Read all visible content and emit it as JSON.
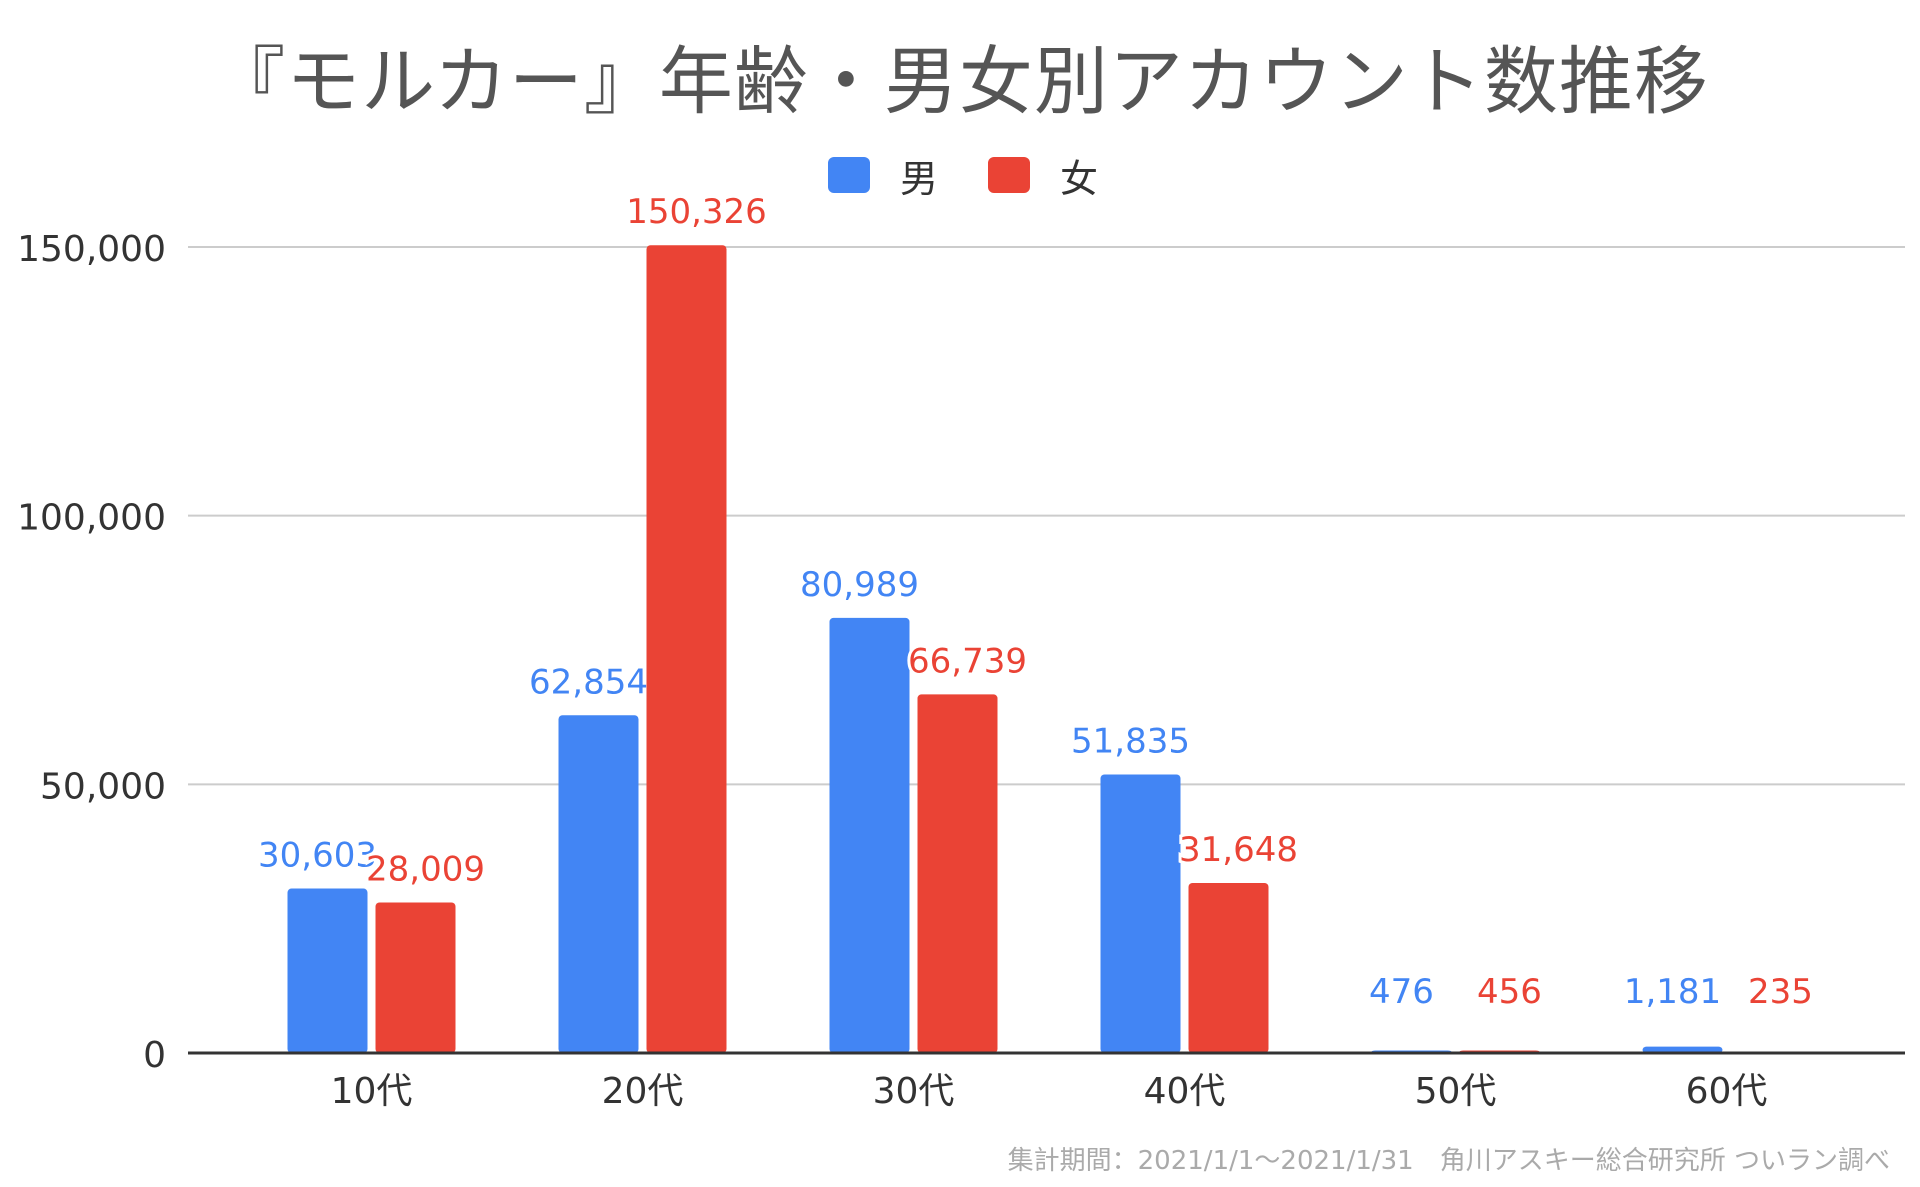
{
  "colors": {
    "male": "#4285f4",
    "female": "#ea4335",
    "grid": "#cccccc",
    "axis": "#333333"
  },
  "chart_data": {
    "type": "bar",
    "title": "『モルカー』年齢・男女別アカウント数推移",
    "categories": [
      "10代",
      "20代",
      "30代",
      "40代",
      "50代",
      "60代"
    ],
    "series": [
      {
        "name": "男",
        "values": [
          30603,
          62854,
          80989,
          51835,
          476,
          1181
        ],
        "labels": [
          "30,603",
          "62,854",
          "80,989",
          "51,835",
          "476",
          "1,181"
        ]
      },
      {
        "name": "女",
        "values": [
          28009,
          150326,
          66739,
          31648,
          456,
          235
        ],
        "labels": [
          "28,009",
          "150,326",
          "66,739",
          "31,648",
          "456",
          "235"
        ]
      }
    ],
    "yticks": [
      0,
      50000,
      100000,
      150000
    ],
    "ytick_labels": [
      "0",
      "50,000",
      "100,000",
      "150,000"
    ],
    "ylim": [
      0,
      150000
    ],
    "xlabel": "",
    "ylabel": "",
    "grid": true,
    "legend_position": "top-center"
  },
  "source_note": "集計期間：2021/1/1～2021/1/31　角川アスキー総合研究所 ついラン調べ"
}
